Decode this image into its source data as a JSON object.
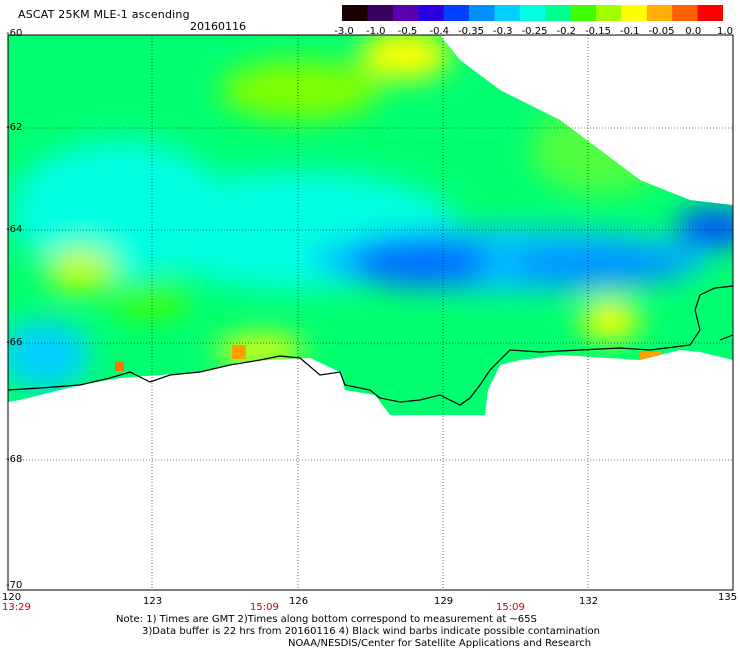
{
  "title": "ASCAT 25KM MLE-1 ascending",
  "date": "20160116",
  "colorbar": {
    "labels": [
      "-3.0",
      "-1.0",
      "-0.5",
      "-0.4",
      "-0.35",
      "-0.3",
      "-0.25",
      "-0.2",
      "-0.15",
      "-0.1",
      "-0.05",
      "0.0",
      "1.0"
    ],
    "colors": [
      "#1a0000",
      "#3a0060",
      "#5800b0",
      "#2a00e0",
      "#0040ff",
      "#0090ff",
      "#00d0ff",
      "#00ffe0",
      "#00ff90",
      "#40ff00",
      "#a0ff00",
      "#ffff00",
      "#ffb000",
      "#ff6000",
      "#ff0000"
    ]
  },
  "y_axis": [
    "-60",
    "-62",
    "-64",
    "-66",
    "-68",
    "-70"
  ],
  "x_axis": [
    "120",
    "123",
    "126",
    "129",
    "132",
    "135"
  ],
  "time_labels": [
    "13:29",
    "15:09",
    "15:09"
  ],
  "notes": [
    "Note: 1) Times are GMT 2)Times along bottom correspond to measurement at ~65S",
    "3)Data buffer is 22 hrs from 20160116 4) Black wind barbs indicate possible contamination",
    "NOAA/NESDIS/Center for Satellite Applications and Research"
  ]
}
